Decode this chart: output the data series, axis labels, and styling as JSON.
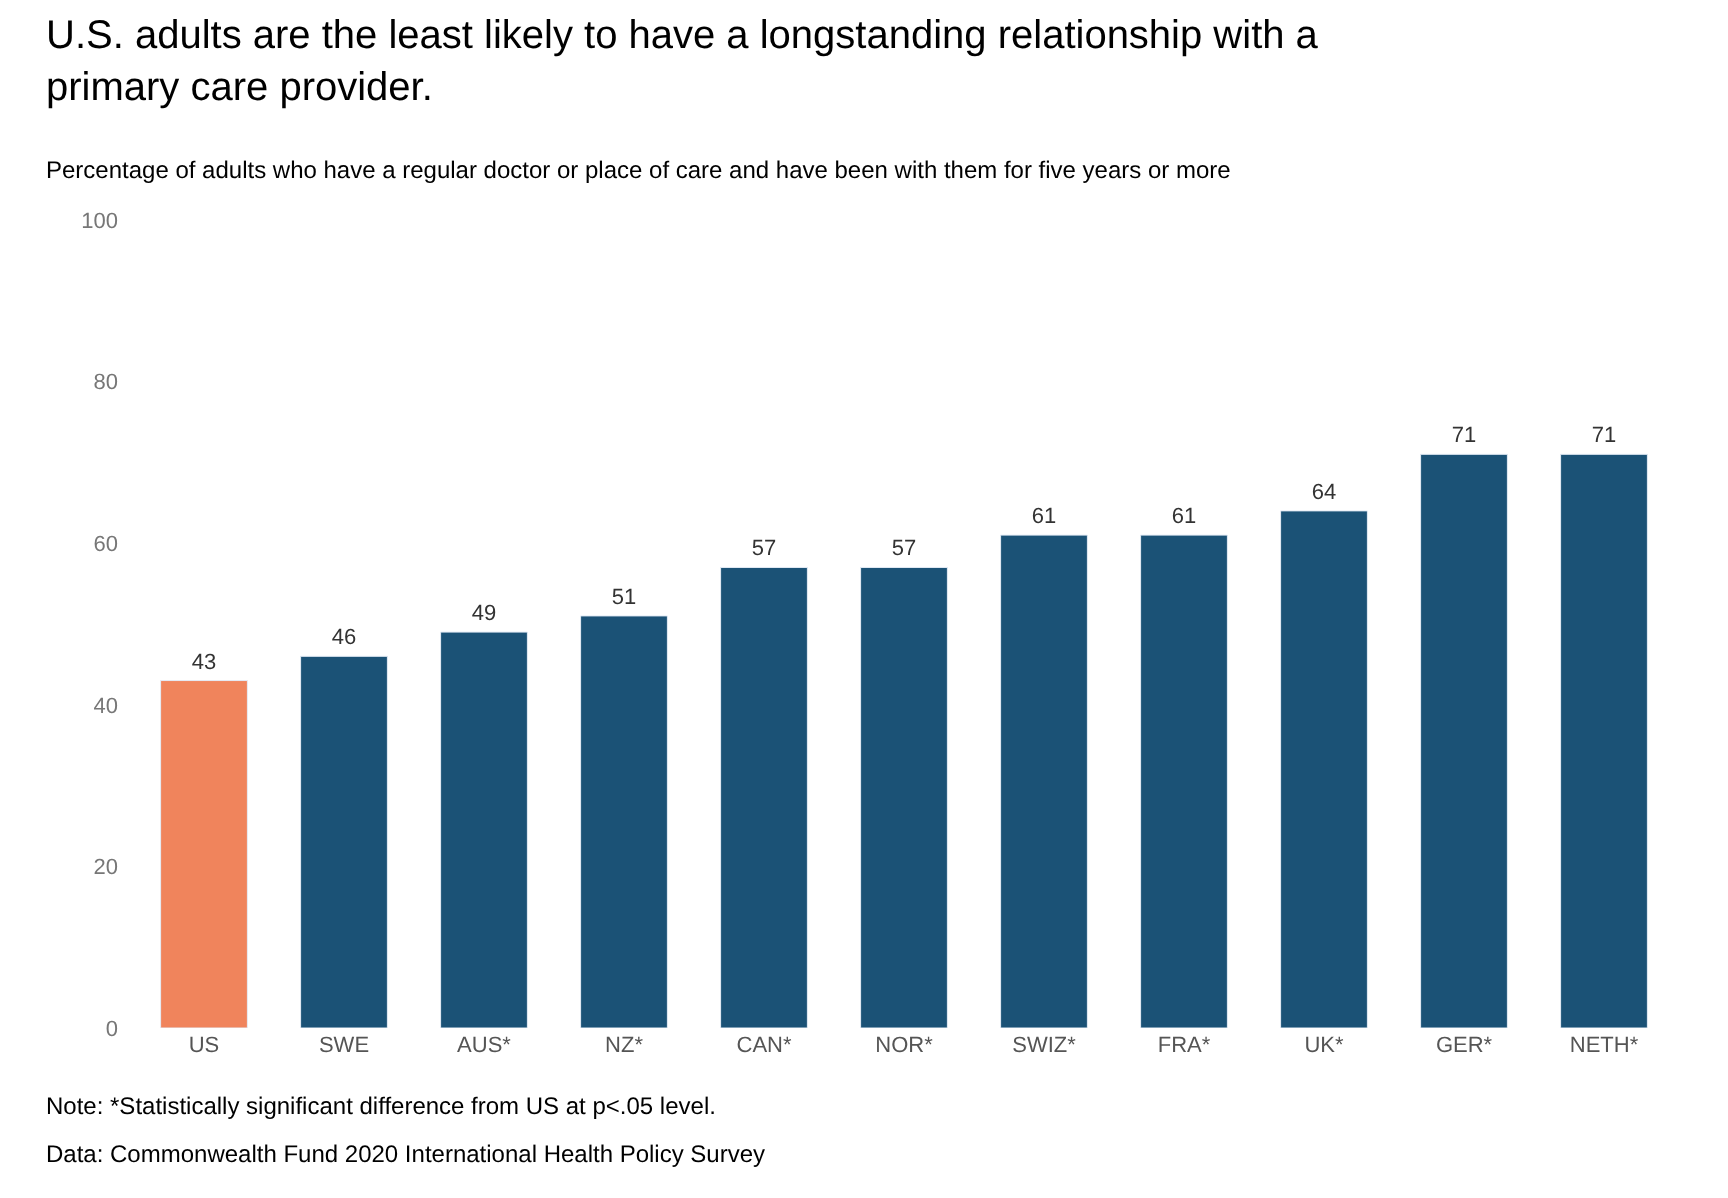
{
  "chart_data": {
    "type": "bar",
    "title": "U.S. adults are the least likely to have a longstanding relationship with a primary care provider.",
    "subtitle": "Percentage of adults who have a regular doctor or place of care and have been with them for five years or more",
    "categories": [
      "US",
      "SWE",
      "AUS*",
      "NZ*",
      "CAN*",
      "NOR*",
      "SWIZ*",
      "FRA*",
      "UK*",
      "GER*",
      "NETH*"
    ],
    "values": [
      43,
      46,
      49,
      51,
      57,
      57,
      61,
      61,
      64,
      71,
      71
    ],
    "colors": [
      "#f0845c",
      "#1b5276",
      "#1b5276",
      "#1b5276",
      "#1b5276",
      "#1b5276",
      "#1b5276",
      "#1b5276",
      "#1b5276",
      "#1b5276",
      "#1b5276"
    ],
    "ylim": [
      0,
      100
    ],
    "yticks": [
      0,
      20,
      40,
      60,
      80,
      100
    ],
    "data_labels": true,
    "annotations": [
      "Note: *Statistically significant difference from US at p<.05 level.",
      "Data: Commonwealth Fund 2020 International Health Policy Survey"
    ]
  }
}
